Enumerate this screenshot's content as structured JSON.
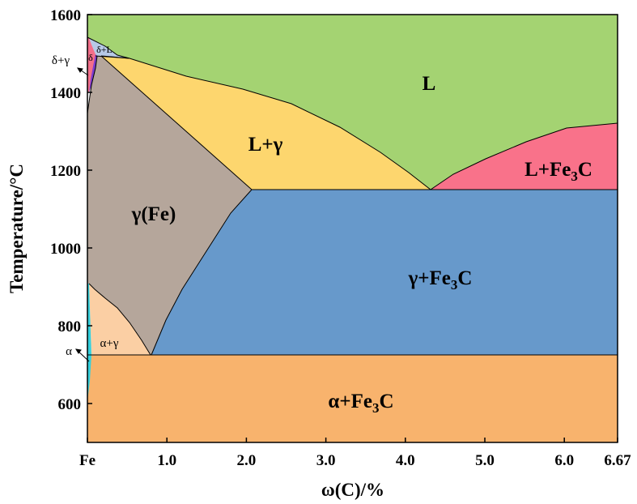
{
  "chart_data": {
    "type": "phase-diagram",
    "xlabel": "ω(C)/%",
    "ylabel": "Temperature/°C",
    "xlim": [
      0,
      6.67
    ],
    "ylim": [
      500,
      1600
    ],
    "x_tick_labels": [
      "Fe",
      "1.0",
      "2.0",
      "3.0",
      "4.0",
      "5.0",
      "6.0",
      "6.67"
    ],
    "y_tick_labels": [
      "600",
      "800",
      "1000",
      "1200",
      "1400",
      "1600"
    ],
    "colors": {
      "liquid": "#a4d372",
      "liquid_gamma": "#fdd66e",
      "liquid_fe3c": "#f9728a",
      "gamma": "#b5a69b",
      "gamma_fe3c": "#6799cb",
      "alpha_fe3c": "#f8b36d",
      "alpha_gamma": "#fbcfa4",
      "delta_liquid": "#b7c9e6",
      "delta": "#f36f8a",
      "delta_gamma": "#7b3ccf",
      "alpha": "#33d0dd"
    },
    "regions": [
      {
        "id": "L",
        "label": "L"
      },
      {
        "id": "L_gamma",
        "label": "L+γ"
      },
      {
        "id": "L_fe3c",
        "label": "L+Fe",
        "sub": "3",
        "suffix": "C"
      },
      {
        "id": "gamma",
        "label": "γ(Fe)"
      },
      {
        "id": "gamma_fe3c",
        "label": "γ+Fe",
        "sub": "3",
        "suffix": "C"
      },
      {
        "id": "alpha_fe3c",
        "label": "α+Fe",
        "sub": "3",
        "suffix": "C"
      },
      {
        "id": "alpha_gamma",
        "label": "α+γ"
      },
      {
        "id": "delta_liquid",
        "label": "δ+L"
      },
      {
        "id": "delta",
        "label": "δ"
      },
      {
        "id": "delta_gamma",
        "label": "δ+γ"
      },
      {
        "id": "alpha",
        "label": "α"
      }
    ],
    "key_points": {
      "eutectic": {
        "x": 4.3,
        "y": 1148
      },
      "eutectoid": {
        "x": 0.77,
        "y": 727
      },
      "max_austenite_solubility": {
        "x": 2.11,
        "y": 1148
      },
      "peritectic": {
        "x": 0.17,
        "y": 1495
      },
      "iron_melting": {
        "x": 0,
        "y": 1538
      },
      "fe3c_liquidus": {
        "x": 6.67,
        "y": 1320
      },
      "a3_pure_iron": {
        "x": 0,
        "y": 912
      }
    }
  }
}
